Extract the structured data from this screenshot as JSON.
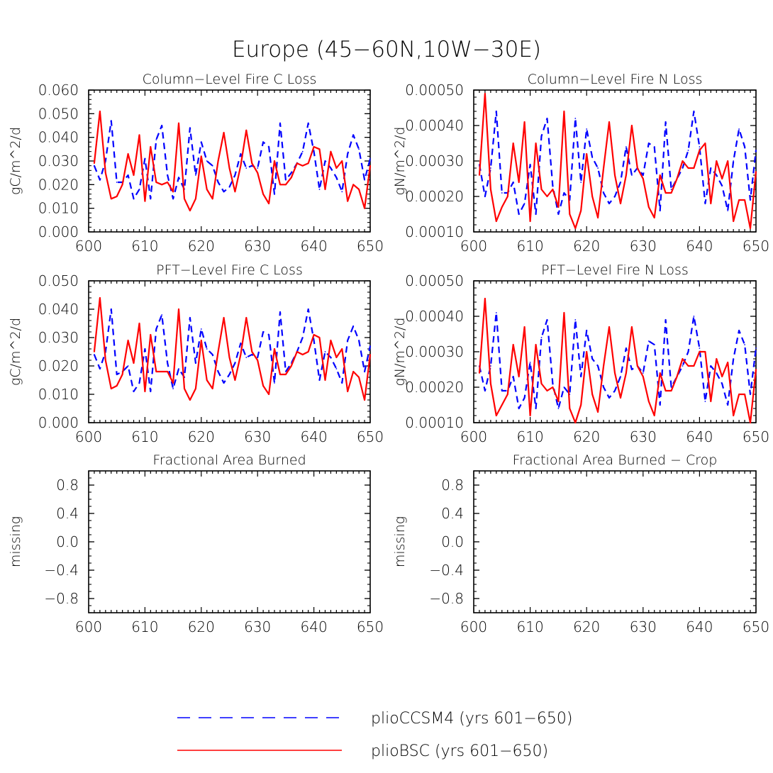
{
  "title": "Europe (45−60N,10W−30E)",
  "colors": {
    "ccsm4": "#0000ff",
    "bsc": "#ff0000",
    "axis": "#000000"
  },
  "legend": {
    "items": [
      {
        "key": "ccsm4",
        "label": "plioCCSM4 (yrs 601−650)",
        "style": "dashed"
      },
      {
        "key": "bsc",
        "label": "plioBSC (yrs 601−650)",
        "style": "solid"
      }
    ]
  },
  "chart_data": [
    {
      "type": "line",
      "title": "Column−Level Fire C Loss",
      "ylabel": "gC/m^2/d",
      "xlim": [
        600,
        650
      ],
      "ylim": [
        0,
        0.06
      ],
      "xticks": [
        600,
        610,
        620,
        630,
        640,
        650
      ],
      "yticks": [
        0,
        0.01,
        0.02,
        0.03,
        0.04,
        0.05,
        0.06
      ],
      "ytick_labels": [
        "0.000",
        "0.010",
        "0.020",
        "0.030",
        "0.040",
        "0.050",
        "0.060"
      ],
      "yminor": 0.002,
      "x": [
        601,
        602,
        603,
        604,
        605,
        606,
        607,
        608,
        609,
        610,
        611,
        612,
        613,
        614,
        615,
        616,
        617,
        618,
        619,
        620,
        621,
        622,
        623,
        624,
        625,
        626,
        627,
        628,
        629,
        630,
        631,
        632,
        633,
        634,
        635,
        636,
        637,
        638,
        639,
        640,
        641,
        642,
        643,
        644,
        645,
        646,
        647,
        648,
        649,
        650
      ],
      "series": [
        {
          "name": "plioCCSM4 (yrs 601−650)",
          "key": "ccsm4",
          "values": [
            0.028,
            0.022,
            0.03,
            0.047,
            0.021,
            0.021,
            0.024,
            0.014,
            0.018,
            0.031,
            0.014,
            0.039,
            0.045,
            0.024,
            0.014,
            0.023,
            0.018,
            0.044,
            0.024,
            0.038,
            0.03,
            0.028,
            0.021,
            0.017,
            0.019,
            0.024,
            0.033,
            0.027,
            0.028,
            0.027,
            0.038,
            0.036,
            0.016,
            0.046,
            0.022,
            0.025,
            0.029,
            0.034,
            0.046,
            0.034,
            0.018,
            0.03,
            0.027,
            0.023,
            0.017,
            0.033,
            0.041,
            0.035,
            0.022,
            0.031
          ]
        },
        {
          "name": "plioBSC (yrs 601−650)",
          "key": "bsc",
          "values": [
            0.029,
            0.051,
            0.025,
            0.014,
            0.015,
            0.02,
            0.033,
            0.024,
            0.041,
            0.013,
            0.036,
            0.021,
            0.02,
            0.021,
            0.017,
            0.046,
            0.014,
            0.009,
            0.014,
            0.032,
            0.018,
            0.014,
            0.03,
            0.042,
            0.027,
            0.017,
            0.028,
            0.043,
            0.029,
            0.025,
            0.016,
            0.012,
            0.03,
            0.02,
            0.02,
            0.023,
            0.029,
            0.028,
            0.029,
            0.036,
            0.035,
            0.018,
            0.034,
            0.027,
            0.03,
            0.013,
            0.02,
            0.018,
            0.01,
            0.028
          ]
        }
      ]
    },
    {
      "type": "line",
      "title": "Column−Level Fire N Loss",
      "ylabel": "gN/m^2/d",
      "xlim": [
        600,
        650
      ],
      "ylim": [
        0.0001,
        0.0005
      ],
      "xticks": [
        600,
        610,
        620,
        630,
        640,
        650
      ],
      "yticks": [
        0.0001,
        0.0002,
        0.0003,
        0.0004,
        0.0005
      ],
      "ytick_labels": [
        "0.00010",
        "0.00020",
        "0.00030",
        "0.00040",
        "0.00050"
      ],
      "yminor": 2e-05,
      "x": [
        601,
        602,
        603,
        604,
        605,
        606,
        607,
        608,
        609,
        610,
        611,
        612,
        613,
        614,
        615,
        616,
        617,
        618,
        619,
        620,
        621,
        622,
        623,
        624,
        625,
        626,
        627,
        628,
        629,
        630,
        631,
        632,
        633,
        634,
        635,
        636,
        637,
        638,
        639,
        640,
        641,
        642,
        643,
        644,
        645,
        646,
        647,
        648,
        649,
        650
      ],
      "series": [
        {
          "name": "plioCCSM4 (yrs 601−650)",
          "key": "ccsm4",
          "values": [
            0.00029,
            0.0002,
            0.00028,
            0.00044,
            0.00021,
            0.00021,
            0.00024,
            0.00015,
            0.00018,
            0.00029,
            0.00015,
            0.00037,
            0.00042,
            0.00023,
            0.00015,
            0.00021,
            0.00019,
            0.00042,
            0.00024,
            0.00039,
            0.00031,
            0.00028,
            0.00021,
            0.00018,
            0.0002,
            0.00024,
            0.00034,
            0.00026,
            0.00028,
            0.00026,
            0.00035,
            0.00034,
            0.00016,
            0.00041,
            0.00022,
            0.00025,
            0.00028,
            0.00033,
            0.00044,
            0.00034,
            0.00018,
            0.00028,
            0.00026,
            0.00023,
            0.00016,
            0.0003,
            0.00039,
            0.00034,
            0.00019,
            0.00033
          ]
        },
        {
          "name": "plioBSC (yrs 601−650)",
          "key": "bsc",
          "values": [
            0.00026,
            0.00049,
            0.00022,
            0.00013,
            0.00017,
            0.0002,
            0.00035,
            0.00024,
            0.00041,
            0.00013,
            0.00035,
            0.00022,
            0.0002,
            0.00022,
            0.00017,
            0.00044,
            0.00015,
            0.00011,
            0.00016,
            0.00032,
            0.0002,
            0.00014,
            0.00028,
            0.00041,
            0.00026,
            0.00018,
            0.00026,
            0.0004,
            0.00028,
            0.00025,
            0.00017,
            0.00014,
            0.00026,
            0.00021,
            0.00021,
            0.00025,
            0.0003,
            0.00028,
            0.00028,
            0.00033,
            0.00035,
            0.00018,
            0.0003,
            0.00025,
            0.0003,
            0.00013,
            0.00019,
            0.00019,
            0.00011,
            0.00027
          ]
        }
      ]
    },
    {
      "type": "line",
      "title": "PFT−Level Fire C Loss",
      "ylabel": "gC/m^2/d",
      "xlim": [
        600,
        650
      ],
      "ylim": [
        0,
        0.05
      ],
      "xticks": [
        600,
        610,
        620,
        630,
        640,
        650
      ],
      "yticks": [
        0,
        0.01,
        0.02,
        0.03,
        0.04,
        0.05
      ],
      "ytick_labels": [
        "0.000",
        "0.010",
        "0.020",
        "0.030",
        "0.040",
        "0.050"
      ],
      "yminor": 0.002,
      "x": [
        601,
        602,
        603,
        604,
        605,
        606,
        607,
        608,
        609,
        610,
        611,
        612,
        613,
        614,
        615,
        616,
        617,
        618,
        619,
        620,
        621,
        622,
        623,
        624,
        625,
        626,
        627,
        628,
        629,
        630,
        631,
        632,
        633,
        634,
        635,
        636,
        637,
        638,
        639,
        640,
        641,
        642,
        643,
        644,
        645,
        646,
        647,
        648,
        649,
        650
      ],
      "series": [
        {
          "name": "plioCCSM4 (yrs 601−650)",
          "key": "ccsm4",
          "values": [
            0.024,
            0.019,
            0.025,
            0.04,
            0.017,
            0.018,
            0.02,
            0.011,
            0.014,
            0.026,
            0.011,
            0.033,
            0.038,
            0.021,
            0.012,
            0.019,
            0.016,
            0.037,
            0.021,
            0.033,
            0.026,
            0.024,
            0.018,
            0.014,
            0.017,
            0.021,
            0.028,
            0.023,
            0.024,
            0.023,
            0.032,
            0.031,
            0.014,
            0.039,
            0.018,
            0.021,
            0.025,
            0.03,
            0.04,
            0.029,
            0.015,
            0.025,
            0.023,
            0.019,
            0.014,
            0.029,
            0.034,
            0.029,
            0.018,
            0.027
          ]
        },
        {
          "name": "plioBSC (yrs 601−650)",
          "key": "bsc",
          "values": [
            0.025,
            0.044,
            0.022,
            0.012,
            0.013,
            0.017,
            0.029,
            0.021,
            0.035,
            0.011,
            0.031,
            0.018,
            0.018,
            0.018,
            0.014,
            0.04,
            0.012,
            0.008,
            0.012,
            0.029,
            0.015,
            0.012,
            0.025,
            0.037,
            0.023,
            0.015,
            0.024,
            0.037,
            0.025,
            0.022,
            0.013,
            0.01,
            0.026,
            0.017,
            0.017,
            0.02,
            0.025,
            0.024,
            0.025,
            0.031,
            0.03,
            0.015,
            0.029,
            0.023,
            0.026,
            0.011,
            0.018,
            0.016,
            0.008,
            0.024
          ]
        }
      ]
    },
    {
      "type": "line",
      "title": "PFT−Level Fire N Loss",
      "ylabel": "gN/m^2/d",
      "xlim": [
        600,
        650
      ],
      "ylim": [
        0.0001,
        0.0005
      ],
      "xticks": [
        600,
        610,
        620,
        630,
        640,
        650
      ],
      "yticks": [
        0.0001,
        0.0002,
        0.0003,
        0.0004,
        0.0005
      ],
      "ytick_labels": [
        "0.00010",
        "0.00020",
        "0.00030",
        "0.00040",
        "0.00050"
      ],
      "yminor": 2e-05,
      "x": [
        601,
        602,
        603,
        604,
        605,
        606,
        607,
        608,
        609,
        610,
        611,
        612,
        613,
        614,
        615,
        616,
        617,
        618,
        619,
        620,
        621,
        622,
        623,
        624,
        625,
        626,
        627,
        628,
        629,
        630,
        631,
        632,
        633,
        634,
        635,
        636,
        637,
        638,
        639,
        640,
        641,
        642,
        643,
        644,
        645,
        646,
        647,
        648,
        649,
        650
      ],
      "series": [
        {
          "name": "plioCCSM4 (yrs 601−650)",
          "key": "ccsm4",
          "values": [
            0.00026,
            0.00019,
            0.00026,
            0.00041,
            0.00019,
            0.00019,
            0.00023,
            0.00014,
            0.00017,
            0.00027,
            0.00014,
            0.00034,
            0.00039,
            0.00021,
            0.00014,
            0.0002,
            0.00018,
            0.00039,
            0.00023,
            0.00036,
            0.00028,
            0.00026,
            0.0002,
            0.00017,
            0.00019,
            0.00023,
            0.00031,
            0.00025,
            0.00026,
            0.00024,
            0.00033,
            0.00032,
            0.00015,
            0.00039,
            0.0002,
            0.00023,
            0.00026,
            0.0003,
            0.0004,
            0.00031,
            0.00016,
            0.00026,
            0.00024,
            0.00021,
            0.00015,
            0.00028,
            0.00036,
            0.00032,
            0.00018,
            0.00031
          ]
        },
        {
          "name": "plioBSC (yrs 601−650)",
          "key": "bsc",
          "values": [
            0.00024,
            0.00045,
            0.00021,
            0.00012,
            0.00015,
            0.00018,
            0.00032,
            0.00023,
            0.00037,
            0.00012,
            0.00032,
            0.00021,
            0.00019,
            0.0002,
            0.00016,
            0.00041,
            0.00014,
            0.0001,
            0.00015,
            0.0003,
            0.00018,
            0.00013,
            0.00026,
            0.00037,
            0.00024,
            0.00017,
            0.00024,
            0.00037,
            0.00026,
            0.00023,
            0.00016,
            0.00012,
            0.00024,
            0.00019,
            0.00019,
            0.00023,
            0.00028,
            0.00026,
            0.00026,
            0.0003,
            0.0003,
            0.00016,
            0.00028,
            0.00023,
            0.00027,
            0.00012,
            0.00018,
            0.00018,
            0.0001,
            0.00025
          ]
        }
      ]
    },
    {
      "type": "line",
      "title": "Fractional Area Burned",
      "ylabel": "missing",
      "xlim": [
        600,
        650
      ],
      "ylim": [
        -1,
        1
      ],
      "xticks": [
        600,
        610,
        620,
        630,
        640,
        650
      ],
      "yticks": [
        -0.8,
        -0.4,
        0.0,
        0.4,
        0.8
      ],
      "ytick_labels": [
        "−0.8",
        "−0.4",
        "0.0",
        "0.4",
        "0.8"
      ],
      "yminor": 0.1,
      "x": [],
      "series": []
    },
    {
      "type": "line",
      "title": "Fractional Area Burned − Crop",
      "ylabel": "missing",
      "xlim": [
        600,
        650
      ],
      "ylim": [
        -1,
        1
      ],
      "xticks": [
        600,
        610,
        620,
        630,
        640,
        650
      ],
      "yticks": [
        -0.8,
        -0.4,
        0.0,
        0.4,
        0.8
      ],
      "ytick_labels": [
        "−0.8",
        "−0.4",
        "0.0",
        "0.4",
        "0.8"
      ],
      "yminor": 0.1,
      "x": [],
      "series": []
    }
  ]
}
